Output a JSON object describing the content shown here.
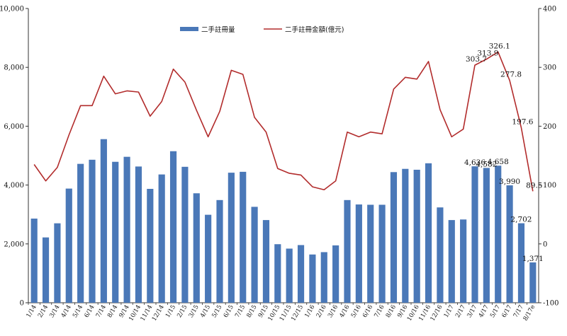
{
  "chart_data": {
    "type": "bar+line",
    "categories": [
      "1/14",
      "2/14",
      "3/14",
      "4/14",
      "5/14",
      "6/14",
      "7/14",
      "8/14",
      "9/14",
      "10/14",
      "11/14",
      "12/14",
      "1/15",
      "2/15",
      "3/15",
      "4/15",
      "5/15",
      "6/15",
      "7/15",
      "8/15",
      "9/15",
      "10/15",
      "11/15",
      "12/15",
      "1/16",
      "2/16",
      "3/16",
      "4/16",
      "5/16",
      "6/16",
      "7/16",
      "8/16",
      "9/16",
      "10/16",
      "11/16",
      "12/16",
      "1/17",
      "2/17",
      "3/17",
      "4/17",
      "5/17",
      "6/17",
      "7/17",
      "8/17e"
    ],
    "series": [
      {
        "name": "二手註冊量",
        "type": "bar",
        "axis": "left",
        "color": "#4a78b8",
        "values": [
          2860,
          2220,
          2700,
          3880,
          4720,
          4860,
          5560,
          4790,
          4960,
          4630,
          3870,
          4360,
          5150,
          4620,
          3720,
          2990,
          3490,
          4420,
          4450,
          3260,
          2810,
          1990,
          1840,
          1960,
          1640,
          1720,
          1950,
          3490,
          3340,
          3330,
          3330,
          4440,
          4550,
          4520,
          4740,
          3240,
          2810,
          2830,
          4636,
          4582,
          4658,
          3990,
          2702,
          1371
        ],
        "labels": {
          "38": "4,636",
          "39": "4,582",
          "40": "4,658",
          "41": "3,990",
          "42": "2,702",
          "43": "1,371"
        }
      },
      {
        "name": "二手註冊金額(億元)",
        "type": "line",
        "axis": "right",
        "color": "#b22c2c",
        "values": [
          135,
          107,
          130,
          185,
          235,
          235,
          285,
          255,
          260,
          258,
          217,
          242,
          297,
          275,
          227,
          182,
          225,
          295,
          288,
          215,
          190,
          128,
          120,
          117,
          97,
          92,
          107,
          190,
          182,
          190,
          187,
          263,
          283,
          280,
          310,
          228,
          182,
          195,
          303.7,
          313.9,
          326.1,
          277.8,
          197.6,
          89.5
        ],
        "labels": {
          "38": "303.7",
          "39": "313.9",
          "40": "326.1",
          "41": "277.8",
          "42": "197.6",
          "43": "89.5"
        }
      }
    ],
    "y_left": {
      "min": 0,
      "max": 10000,
      "ticks": [
        0,
        2000,
        4000,
        6000,
        8000,
        10000
      ],
      "tick_labels": [
        "0",
        "2,000",
        "4,000",
        "6,000",
        "8,000",
        "10,000"
      ]
    },
    "y_right": {
      "min": -100,
      "max": 400,
      "ticks": [
        -100,
        0,
        100,
        200,
        300,
        400
      ],
      "tick_labels": [
        "-100",
        "0",
        "100",
        "200",
        "300",
        "400"
      ]
    },
    "legend": {
      "placement": "top-center"
    },
    "grid": false
  }
}
